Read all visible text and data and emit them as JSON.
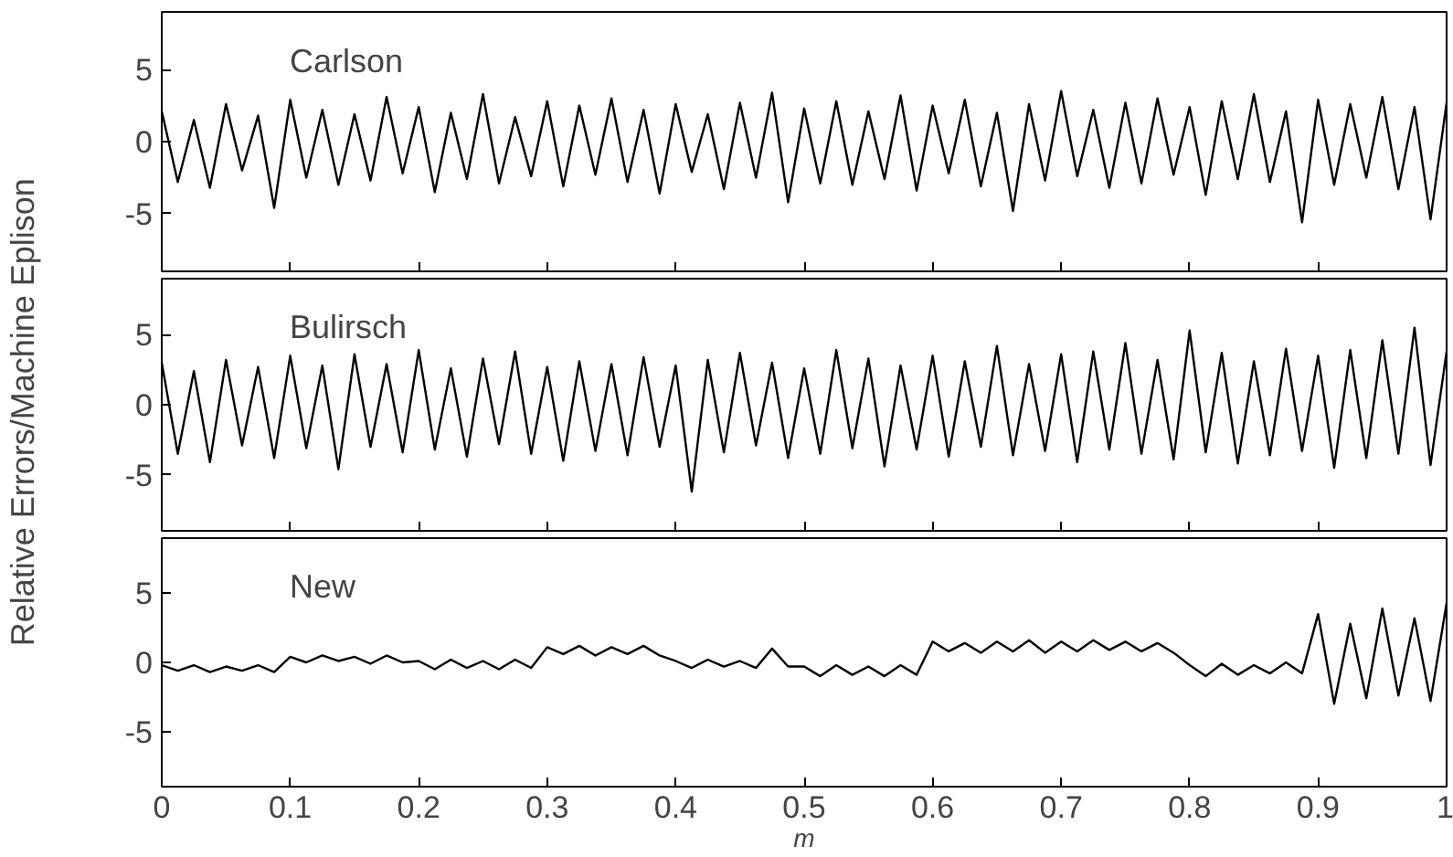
{
  "chart_data": [
    {
      "type": "line",
      "annotations": [
        "Carlson"
      ],
      "tick_labels": "y",
      "grid": false,
      "xlim": [
        0,
        1
      ],
      "xticks": [
        0,
        0.1,
        0.2,
        0.3,
        0.4,
        0.5,
        0.6,
        0.7,
        0.8,
        0.9,
        1
      ],
      "ylim": [
        -9,
        9
      ],
      "yticks": [
        -5,
        0,
        5
      ],
      "x": [
        0,
        0.0125,
        0.025,
        0.0375,
        0.05,
        0.0625,
        0.075,
        0.0875,
        0.1,
        0.1125,
        0.125,
        0.1375,
        0.15,
        0.1625,
        0.175,
        0.1875,
        0.2,
        0.2125,
        0.225,
        0.2375,
        0.25,
        0.2625,
        0.275,
        0.2875,
        0.3,
        0.3125,
        0.325,
        0.3375,
        0.35,
        0.3625,
        0.375,
        0.3875,
        0.4,
        0.4125,
        0.425,
        0.4375,
        0.45,
        0.4625,
        0.475,
        0.4875,
        0.5,
        0.5125,
        0.525,
        0.5375,
        0.55,
        0.5625,
        0.575,
        0.5875,
        0.6,
        0.6125,
        0.625,
        0.6375,
        0.65,
        0.6625,
        0.675,
        0.6875,
        0.7,
        0.7125,
        0.725,
        0.7375,
        0.75,
        0.7625,
        0.775,
        0.7875,
        0.8,
        0.8125,
        0.825,
        0.8375,
        0.85,
        0.8625,
        0.875,
        0.8875,
        0.9,
        0.9125,
        0.925,
        0.9375,
        0.95,
        0.9625,
        0.975,
        0.9875,
        1
      ],
      "series": [
        {
          "color": "#000000",
          "values": [
            2.1,
            -2.8,
            1.5,
            -3.2,
            2.6,
            -2.0,
            1.8,
            -4.6,
            2.9,
            -2.5,
            2.2,
            -3.0,
            1.9,
            -2.7,
            3.1,
            -2.2,
            2.4,
            -3.5,
            2.0,
            -2.6,
            3.3,
            -2.9,
            1.7,
            -2.4,
            2.8,
            -3.1,
            2.5,
            -2.3,
            3.0,
            -2.8,
            2.2,
            -3.6,
            2.6,
            -2.1,
            1.9,
            -3.3,
            2.7,
            -2.5,
            3.4,
            -4.2,
            2.3,
            -2.9,
            2.8,
            -3.0,
            2.1,
            -2.6,
            3.2,
            -3.4,
            2.5,
            -2.2,
            2.9,
            -3.1,
            2.0,
            -4.8,
            2.6,
            -2.7,
            3.5,
            -2.4,
            2.2,
            -3.2,
            2.7,
            -2.9,
            3.0,
            -2.3,
            2.4,
            -3.7,
            2.8,
            -2.6,
            3.3,
            -2.8,
            2.1,
            -5.6,
            2.9,
            -3.0,
            2.6,
            -2.5,
            3.1,
            -3.3,
            2.4,
            -5.4,
            2.7
          ]
        }
      ]
    },
    {
      "type": "line",
      "annotations": [
        "Bulirsch"
      ],
      "ylabel": "Relative Errors/Machine Eplison",
      "tick_labels": "y",
      "grid": false,
      "xlim": [
        0,
        1
      ],
      "xticks": [
        0,
        0.1,
        0.2,
        0.3,
        0.4,
        0.5,
        0.6,
        0.7,
        0.8,
        0.9,
        1
      ],
      "ylim": [
        -9,
        9
      ],
      "yticks": [
        -5,
        0,
        5
      ],
      "x": [
        0,
        0.0125,
        0.025,
        0.0375,
        0.05,
        0.0625,
        0.075,
        0.0875,
        0.1,
        0.1125,
        0.125,
        0.1375,
        0.15,
        0.1625,
        0.175,
        0.1875,
        0.2,
        0.2125,
        0.225,
        0.2375,
        0.25,
        0.2625,
        0.275,
        0.2875,
        0.3,
        0.3125,
        0.325,
        0.3375,
        0.35,
        0.3625,
        0.375,
        0.3875,
        0.4,
        0.4125,
        0.425,
        0.4375,
        0.45,
        0.4625,
        0.475,
        0.4875,
        0.5,
        0.5125,
        0.525,
        0.5375,
        0.55,
        0.5625,
        0.575,
        0.5875,
        0.6,
        0.6125,
        0.625,
        0.6375,
        0.65,
        0.6625,
        0.675,
        0.6875,
        0.7,
        0.7125,
        0.725,
        0.7375,
        0.75,
        0.7625,
        0.775,
        0.7875,
        0.8,
        0.8125,
        0.825,
        0.8375,
        0.85,
        0.8625,
        0.875,
        0.8875,
        0.9,
        0.9125,
        0.925,
        0.9375,
        0.95,
        0.9625,
        0.975,
        0.9875,
        1
      ],
      "series": [
        {
          "color": "#000000",
          "values": [
            3.0,
            -3.5,
            2.4,
            -4.1,
            3.2,
            -2.9,
            2.7,
            -3.8,
            3.5,
            -3.1,
            2.8,
            -4.6,
            3.6,
            -3.0,
            2.9,
            -3.4,
            3.9,
            -3.2,
            2.6,
            -3.7,
            3.3,
            -2.8,
            3.8,
            -3.5,
            2.7,
            -4.0,
            3.1,
            -3.3,
            2.9,
            -3.6,
            3.4,
            -3.0,
            2.8,
            -6.2,
            3.2,
            -3.4,
            3.7,
            -2.9,
            3.0,
            -3.8,
            2.6,
            -3.5,
            3.9,
            -3.1,
            3.3,
            -4.4,
            2.8,
            -3.2,
            3.5,
            -3.7,
            3.1,
            -3.0,
            4.2,
            -3.6,
            2.9,
            -3.3,
            3.6,
            -4.1,
            3.8,
            -3.2,
            4.4,
            -3.5,
            3.2,
            -3.9,
            5.3,
            -3.4,
            3.7,
            -4.2,
            3.1,
            -3.6,
            4.0,
            -3.3,
            3.5,
            -4.5,
            3.9,
            -3.8,
            4.6,
            -3.5,
            5.5,
            -4.3,
            3.8
          ]
        }
      ]
    },
    {
      "type": "line",
      "annotations": [
        "New"
      ],
      "xlabel": "m",
      "grid": false,
      "xlim": [
        0,
        1
      ],
      "xticks": [
        0,
        0.1,
        0.2,
        0.3,
        0.4,
        0.5,
        0.6,
        0.7,
        0.8,
        0.9,
        1
      ],
      "ylim": [
        -9,
        9
      ],
      "yticks": [
        -5,
        0,
        5
      ],
      "x": [
        0,
        0.0125,
        0.025,
        0.0375,
        0.05,
        0.0625,
        0.075,
        0.0875,
        0.1,
        0.1125,
        0.125,
        0.1375,
        0.15,
        0.1625,
        0.175,
        0.1875,
        0.2,
        0.2125,
        0.225,
        0.2375,
        0.25,
        0.2625,
        0.275,
        0.2875,
        0.3,
        0.3125,
        0.325,
        0.3375,
        0.35,
        0.3625,
        0.375,
        0.3875,
        0.4,
        0.4125,
        0.425,
        0.4375,
        0.45,
        0.4625,
        0.475,
        0.4875,
        0.5,
        0.5125,
        0.525,
        0.5375,
        0.55,
        0.5625,
        0.575,
        0.5875,
        0.6,
        0.6125,
        0.625,
        0.6375,
        0.65,
        0.6625,
        0.675,
        0.6875,
        0.7,
        0.7125,
        0.725,
        0.7375,
        0.75,
        0.7625,
        0.775,
        0.7875,
        0.8,
        0.8125,
        0.825,
        0.8375,
        0.85,
        0.8625,
        0.875,
        0.8875,
        0.9,
        0.9125,
        0.925,
        0.9375,
        0.95,
        0.9625,
        0.975,
        0.9875,
        1
      ],
      "series": [
        {
          "color": "#000000",
          "values": [
            -0.2,
            -0.6,
            -0.2,
            -0.7,
            -0.3,
            -0.6,
            -0.2,
            -0.7,
            0.4,
            0.0,
            0.5,
            0.1,
            0.4,
            -0.1,
            0.5,
            0.0,
            0.1,
            -0.5,
            0.2,
            -0.4,
            0.1,
            -0.5,
            0.2,
            -0.4,
            1.1,
            0.6,
            1.2,
            0.5,
            1.1,
            0.6,
            1.2,
            0.5,
            0.1,
            -0.4,
            0.2,
            -0.3,
            0.1,
            -0.4,
            1.0,
            -0.3,
            -0.3,
            -1.0,
            -0.2,
            -0.9,
            -0.3,
            -1.0,
            -0.2,
            -0.9,
            1.5,
            0.8,
            1.4,
            0.7,
            1.5,
            0.8,
            1.6,
            0.7,
            1.5,
            0.8,
            1.6,
            0.9,
            1.5,
            0.8,
            1.4,
            0.7,
            -0.2,
            -1.0,
            -0.1,
            -0.9,
            -0.2,
            -0.8,
            0.0,
            -0.8,
            3.5,
            -3.0,
            2.8,
            -2.6,
            3.9,
            -2.4,
            3.2,
            -2.8,
            4.3
          ]
        }
      ]
    }
  ]
}
